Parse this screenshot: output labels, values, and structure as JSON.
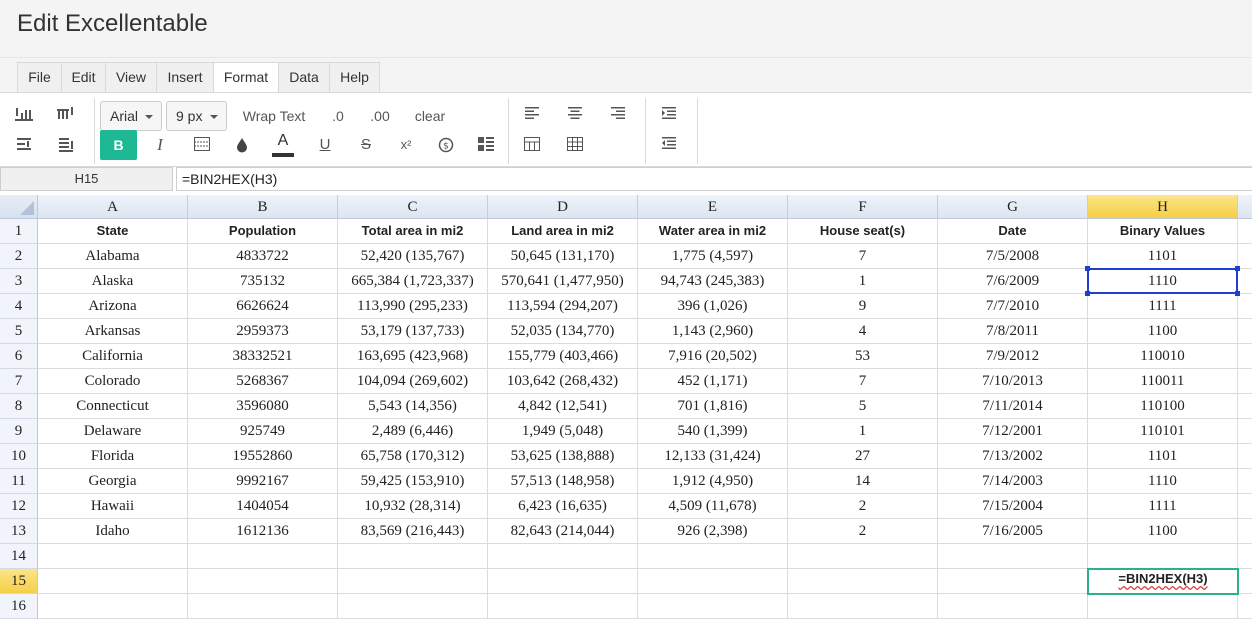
{
  "app": {
    "title": "Edit Excellentable"
  },
  "menu": {
    "items": [
      "File",
      "Edit",
      "View",
      "Insert",
      "Format",
      "Data",
      "Help"
    ],
    "active": "Format"
  },
  "toolbar": {
    "font_family": "Arial",
    "font_size": "9 px",
    "wrap_text": "Wrap Text",
    "decimal_decrease": ".0",
    "decimal_increase": ".00",
    "clear": "clear",
    "bold": "B",
    "italic": "I",
    "text_color": "A",
    "underline": "U",
    "strike": "S",
    "superscript": "x²",
    "accent_color": "#1fb894"
  },
  "formula_bar": {
    "cell_ref": "H15",
    "formula": "=BIN2HEX(H3)"
  },
  "columns": [
    "A",
    "B",
    "C",
    "D",
    "E",
    "F",
    "G",
    "H"
  ],
  "rows": [
    [
      "State",
      "Population",
      "Total area in mi2",
      "Land area in mi2",
      "Water area in mi2",
      "House seat(s)",
      "Date",
      "Binary Values"
    ],
    [
      "Alabama",
      "4833722",
      "52,420 (135,767)",
      "50,645 (131,170)",
      "1,775 (4,597)",
      "7",
      "7/5/2008",
      "1101"
    ],
    [
      "Alaska",
      "735132",
      "665,384 (1,723,337)",
      "570,641 (1,477,950)",
      "94,743 (245,383)",
      "1",
      "7/6/2009",
      "1110"
    ],
    [
      "Arizona",
      "6626624",
      "113,990 (295,233)",
      "113,594 (294,207)",
      "396 (1,026)",
      "9",
      "7/7/2010",
      "1111"
    ],
    [
      "Arkansas",
      "2959373",
      "53,179 (137,733)",
      "52,035 (134,770)",
      "1,143 (2,960)",
      "4",
      "7/8/2011",
      "1100"
    ],
    [
      "California",
      "38332521",
      "163,695 (423,968)",
      "155,779 (403,466)",
      "7,916 (20,502)",
      "53",
      "7/9/2012",
      "110010"
    ],
    [
      "Colorado",
      "5268367",
      "104,094 (269,602)",
      "103,642 (268,432)",
      "452 (1,171)",
      "7",
      "7/10/2013",
      "110011"
    ],
    [
      "Connecticut",
      "3596080",
      "5,543 (14,356)",
      "4,842 (12,541)",
      "701 (1,816)",
      "5",
      "7/11/2014",
      "110100"
    ],
    [
      "Delaware",
      "925749",
      "2,489 (6,446)",
      "1,949 (5,048)",
      "540 (1,399)",
      "1",
      "7/12/2001",
      "110101"
    ],
    [
      "Florida",
      "19552860",
      "65,758 (170,312)",
      "53,625 (138,888)",
      "12,133 (31,424)",
      "27",
      "7/13/2002",
      "1101"
    ],
    [
      "Georgia",
      "9992167",
      "59,425 (153,910)",
      "57,513 (148,958)",
      "1,912 (4,950)",
      "14",
      "7/14/2003",
      "1110"
    ],
    [
      "Hawaii",
      "1404054",
      "10,932 (28,314)",
      "6,423 (16,635)",
      "4,509 (11,678)",
      "2",
      "7/15/2004",
      "1111"
    ],
    [
      "Idaho",
      "1612136",
      "83,569 (216,443)",
      "82,643 (214,044)",
      "926 (2,398)",
      "2",
      "7/16/2005",
      "1100"
    ],
    [
      "",
      "",
      "",
      "",
      "",
      "",
      "",
      ""
    ],
    [
      "",
      "",
      "",
      "",
      "",
      "",
      "",
      ""
    ],
    [
      "",
      "",
      "",
      "",
      "",
      "",
      "",
      ""
    ]
  ],
  "row_numbers": [
    "1",
    "2",
    "3",
    "4",
    "5",
    "6",
    "7",
    "8",
    "9",
    "10",
    "11",
    "12",
    "13",
    "14",
    "15",
    "16"
  ],
  "selection": {
    "column": "H",
    "row": "15",
    "ref_highlight": "H3"
  },
  "editor": {
    "text": "=BIN2HEX(H3)"
  }
}
